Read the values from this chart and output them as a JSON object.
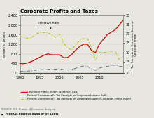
{
  "title": "Corporate Profits and Taxes",
  "years": [
    1990,
    1991,
    1992,
    1993,
    1994,
    1995,
    1996,
    1997,
    1998,
    1999,
    2000,
    2001,
    2002,
    2003,
    2004,
    2005,
    2006,
    2007,
    2008,
    2009,
    2010,
    2011,
    2012,
    2013,
    2014,
    2015,
    2016
  ],
  "corp_profits": [
    400,
    390,
    430,
    490,
    580,
    660,
    740,
    800,
    760,
    760,
    760,
    640,
    650,
    770,
    950,
    1100,
    1200,
    1200,
    950,
    850,
    1200,
    1400,
    1600,
    1700,
    1800,
    2000,
    2200
  ],
  "tax_receipts_left": [
    80,
    75,
    85,
    100,
    120,
    140,
    150,
    165,
    165,
    165,
    185,
    140,
    130,
    145,
    200,
    255,
    295,
    275,
    185,
    115,
    210,
    250,
    285,
    305,
    335,
    290,
    270
  ],
  "effective_rate": [
    26,
    25.5,
    25,
    25.5,
    27,
    27.5,
    27.5,
    27.5,
    26.5,
    25.5,
    27,
    23,
    21,
    20,
    22,
    24,
    25,
    25,
    21,
    15.5,
    19,
    19,
    19,
    19.5,
    19.5,
    16,
    17
  ],
  "ylim_left": [
    0,
    2400
  ],
  "ylim_right": [
    10,
    35
  ],
  "yticks_left": [
    0,
    400,
    800,
    1200,
    1600,
    2000,
    2400
  ],
  "yticks_right": [
    10,
    15,
    19,
    23,
    27,
    31,
    35
  ],
  "xlim": [
    1990,
    2016
  ],
  "xticks": [
    1990,
    1995,
    2000,
    2005,
    2010
  ],
  "color_profits": "#cc0000",
  "color_tax_left": "#5577aa",
  "color_effective": "#bbbb00",
  "bg_color": "#e8e8e0",
  "annotation_text": "Effective Rate",
  "legend_labels": [
    "Corporate Profits before Taxes (left axis)",
    "Federal Government's Tax Receipts on Corporate Income (left)",
    "Federal Government's Tax Receipts on Corporate Income/Corporate Profits (right)"
  ],
  "source_text": "SOURCE: U.S. Bureau of Economic Analysis.",
  "source_text2": "■  FEDERAL RESERVE BANK OF ST. LOUIS",
  "ylabel_left": "Billions of Dollars",
  "ylabel_right": "Tax Receipts on Corporate Income/\nCorporate Profits"
}
